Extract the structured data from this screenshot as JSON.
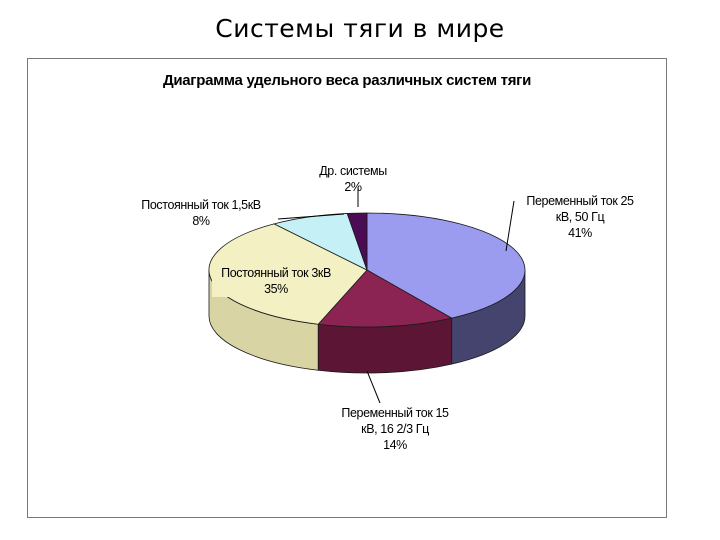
{
  "slide": {
    "title": "Системы тяги в мире"
  },
  "chart_data": {
    "type": "pie",
    "title": "Диаграмма удельного веса различных систем тяги",
    "slices": [
      {
        "name": "Переменный ток 25 кВ, 50 Гц",
        "label_lines": [
          "Переменный ток 25",
          "кВ, 50 Гц"
        ],
        "value": 41,
        "value_label": "41%",
        "color": "#9b9cf0",
        "side_color": "#44446e"
      },
      {
        "name": "Переменный ток 15 кВ, 16 2/3 Гц",
        "label_lines": [
          "Переменный ток 15",
          "кВ, 16 2/3 Гц"
        ],
        "value": 14,
        "value_label": "14%",
        "color": "#8b2452",
        "side_color": "#5c1535"
      },
      {
        "name": "Постоянный ток 3кВ",
        "label_lines": [
          "Постоянный ток 3кВ"
        ],
        "value": 35,
        "value_label": "35%",
        "color": "#f3f0c4",
        "side_color": "#d8d4a4"
      },
      {
        "name": "Постоянный ток 1,5кВ",
        "label_lines": [
          "Постоянный ток 1,5кВ"
        ],
        "value": 8,
        "value_label": "8%",
        "color": "#c4f0f6",
        "side_color": "#8fb8be"
      },
      {
        "name": "Др. системы",
        "label_lines": [
          "Др. системы"
        ],
        "value": 2,
        "value_label": "2%",
        "color": "#4a0c55",
        "side_color": "#2a0532"
      }
    ]
  }
}
